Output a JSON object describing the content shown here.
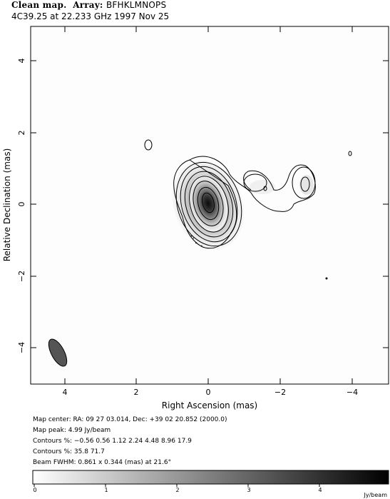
{
  "header": {
    "kind_label": "Clean map.",
    "array_label": "Array:",
    "array_value": "BFHKLMNOPS",
    "subtitle": "4C39.25 at 22.233 GHz 1997 Nov 25"
  },
  "axes": {
    "xlabel": "Right Ascension  (mas)",
    "ylabel": "Relative Declination  (mas)",
    "xticks": [
      "4",
      "2",
      "0",
      "−2",
      "−4"
    ],
    "yticks": [
      "4",
      "2",
      "0",
      "−2",
      "−4"
    ],
    "xlim": [
      5,
      -5
    ],
    "ylim": [
      -5,
      5
    ]
  },
  "info": {
    "map_center": "Map center:  RA: 09 27 03.014,  Dec: +39 02 20.852 (2000.0)",
    "map_peak": "Map peak: 4.99 Jy/beam",
    "contours1": "Contours %: −0.56 0.56 1.12 2.24 4.48 8.96 17.9",
    "contours2": "Contours %: 35.8 71.7",
    "beam": "Beam FWHM: 0.861 x 0.344 (mas) at 21.6°"
  },
  "colorbar": {
    "ticks": [
      "0",
      "1",
      "2",
      "3",
      "4"
    ],
    "unit": "Jy/beam",
    "range": [
      0,
      4.99
    ]
  },
  "chart_data": {
    "type": "contour",
    "peak_jy_per_beam": 4.99,
    "contour_levels_percent": [
      -0.56,
      0.56,
      1.12,
      2.24,
      4.48,
      8.96,
      17.9,
      35.8,
      71.7
    ],
    "beam": {
      "major_mas": 0.861,
      "minor_mas": 0.344,
      "pa_deg": 21.6
    }
  }
}
